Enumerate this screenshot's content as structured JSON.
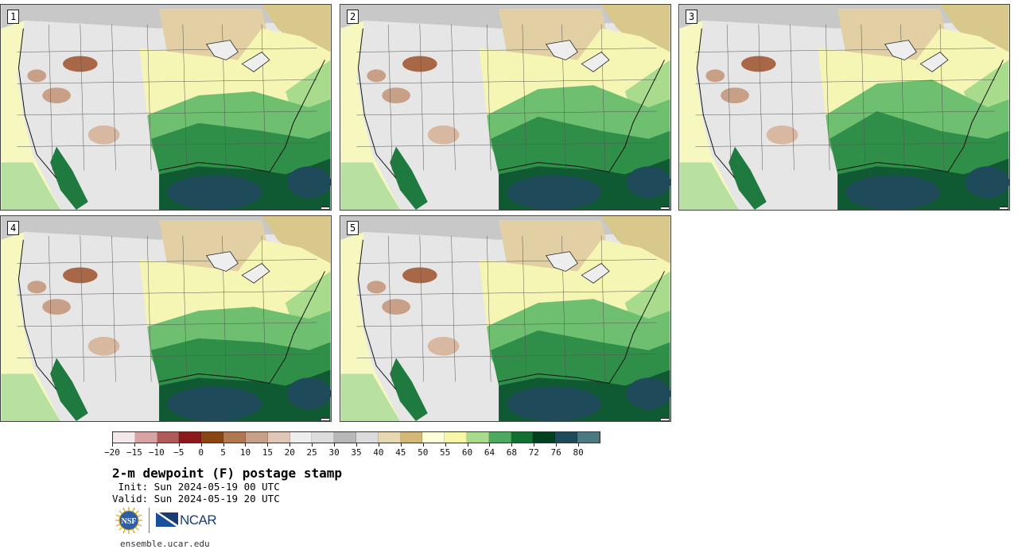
{
  "figure": {
    "title": "2-m dewpoint (F) postage stamp",
    "init": " Init: Sun 2024-05-19 00 UTC",
    "valid": "Valid: Sun 2024-05-19 20 UTC",
    "website": "ensemble.ucar.edu",
    "logo_nsf": "NSF",
    "logo_ncar": "NCAR"
  },
  "panels": [
    {
      "label": "1"
    },
    {
      "label": "2"
    },
    {
      "label": "3"
    },
    {
      "label": "4"
    },
    {
      "label": "5"
    }
  ],
  "colorbar": {
    "tick_labels": [
      "-20",
      "-15",
      "-10",
      "-5",
      "0",
      "5",
      "10",
      "15",
      "20",
      "25",
      "30",
      "35",
      "40",
      "45",
      "50",
      "55",
      "60",
      "64",
      "68",
      "72",
      "76",
      "80"
    ],
    "colors": [
      "#f4e9ea",
      "#d8a3a3",
      "#b05a5a",
      "#8b1a1a",
      "#8b4513",
      "#b07850",
      "#c8a088",
      "#e0c8b8",
      "#eeeeee",
      "#dddddd",
      "#b8b8b8",
      "#dcdcdc",
      "#e6d8b0",
      "#d4b878",
      "#fefed8",
      "#f6f8a8",
      "#a8dc8c",
      "#4caa60",
      "#107030",
      "#004020",
      "#1e4a5a",
      "#4a7a80"
    ]
  }
}
